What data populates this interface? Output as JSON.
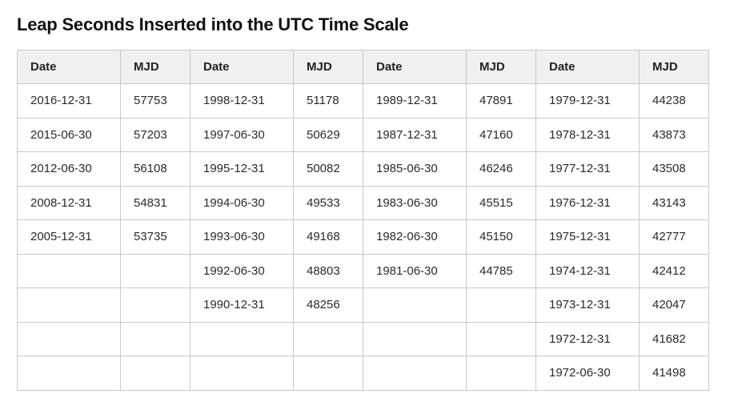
{
  "title": "Leap Seconds Inserted into the UTC Time Scale",
  "columns": [
    "Date",
    "MJD",
    "Date",
    "MJD",
    "Date",
    "MJD",
    "Date",
    "MJD"
  ],
  "rows": [
    [
      "2016-12-31",
      "57753",
      "1998-12-31",
      "51178",
      "1989-12-31",
      "47891",
      "1979-12-31",
      "44238"
    ],
    [
      "2015-06-30",
      "57203",
      "1997-06-30",
      "50629",
      "1987-12-31",
      "47160",
      "1978-12-31",
      "43873"
    ],
    [
      "2012-06-30",
      "56108",
      "1995-12-31",
      "50082",
      "1985-06-30",
      "46246",
      "1977-12-31",
      "43508"
    ],
    [
      "2008-12-31",
      "54831",
      "1994-06-30",
      "49533",
      "1983-06-30",
      "45515",
      "1976-12-31",
      "43143"
    ],
    [
      "2005-12-31",
      "53735",
      "1993-06-30",
      "49168",
      "1982-06-30",
      "45150",
      "1975-12-31",
      "42777"
    ],
    [
      "",
      "",
      "1992-06-30",
      "48803",
      "1981-06-30",
      "44785",
      "1974-12-31",
      "42412"
    ],
    [
      "",
      "",
      "1990-12-31",
      "48256",
      "",
      "",
      "1973-12-31",
      "42047"
    ],
    [
      "",
      "",
      "",
      "",
      "",
      "",
      "1972-12-31",
      "41682"
    ],
    [
      "",
      "",
      "",
      "",
      "",
      "",
      "1972-06-30",
      "41498"
    ]
  ]
}
